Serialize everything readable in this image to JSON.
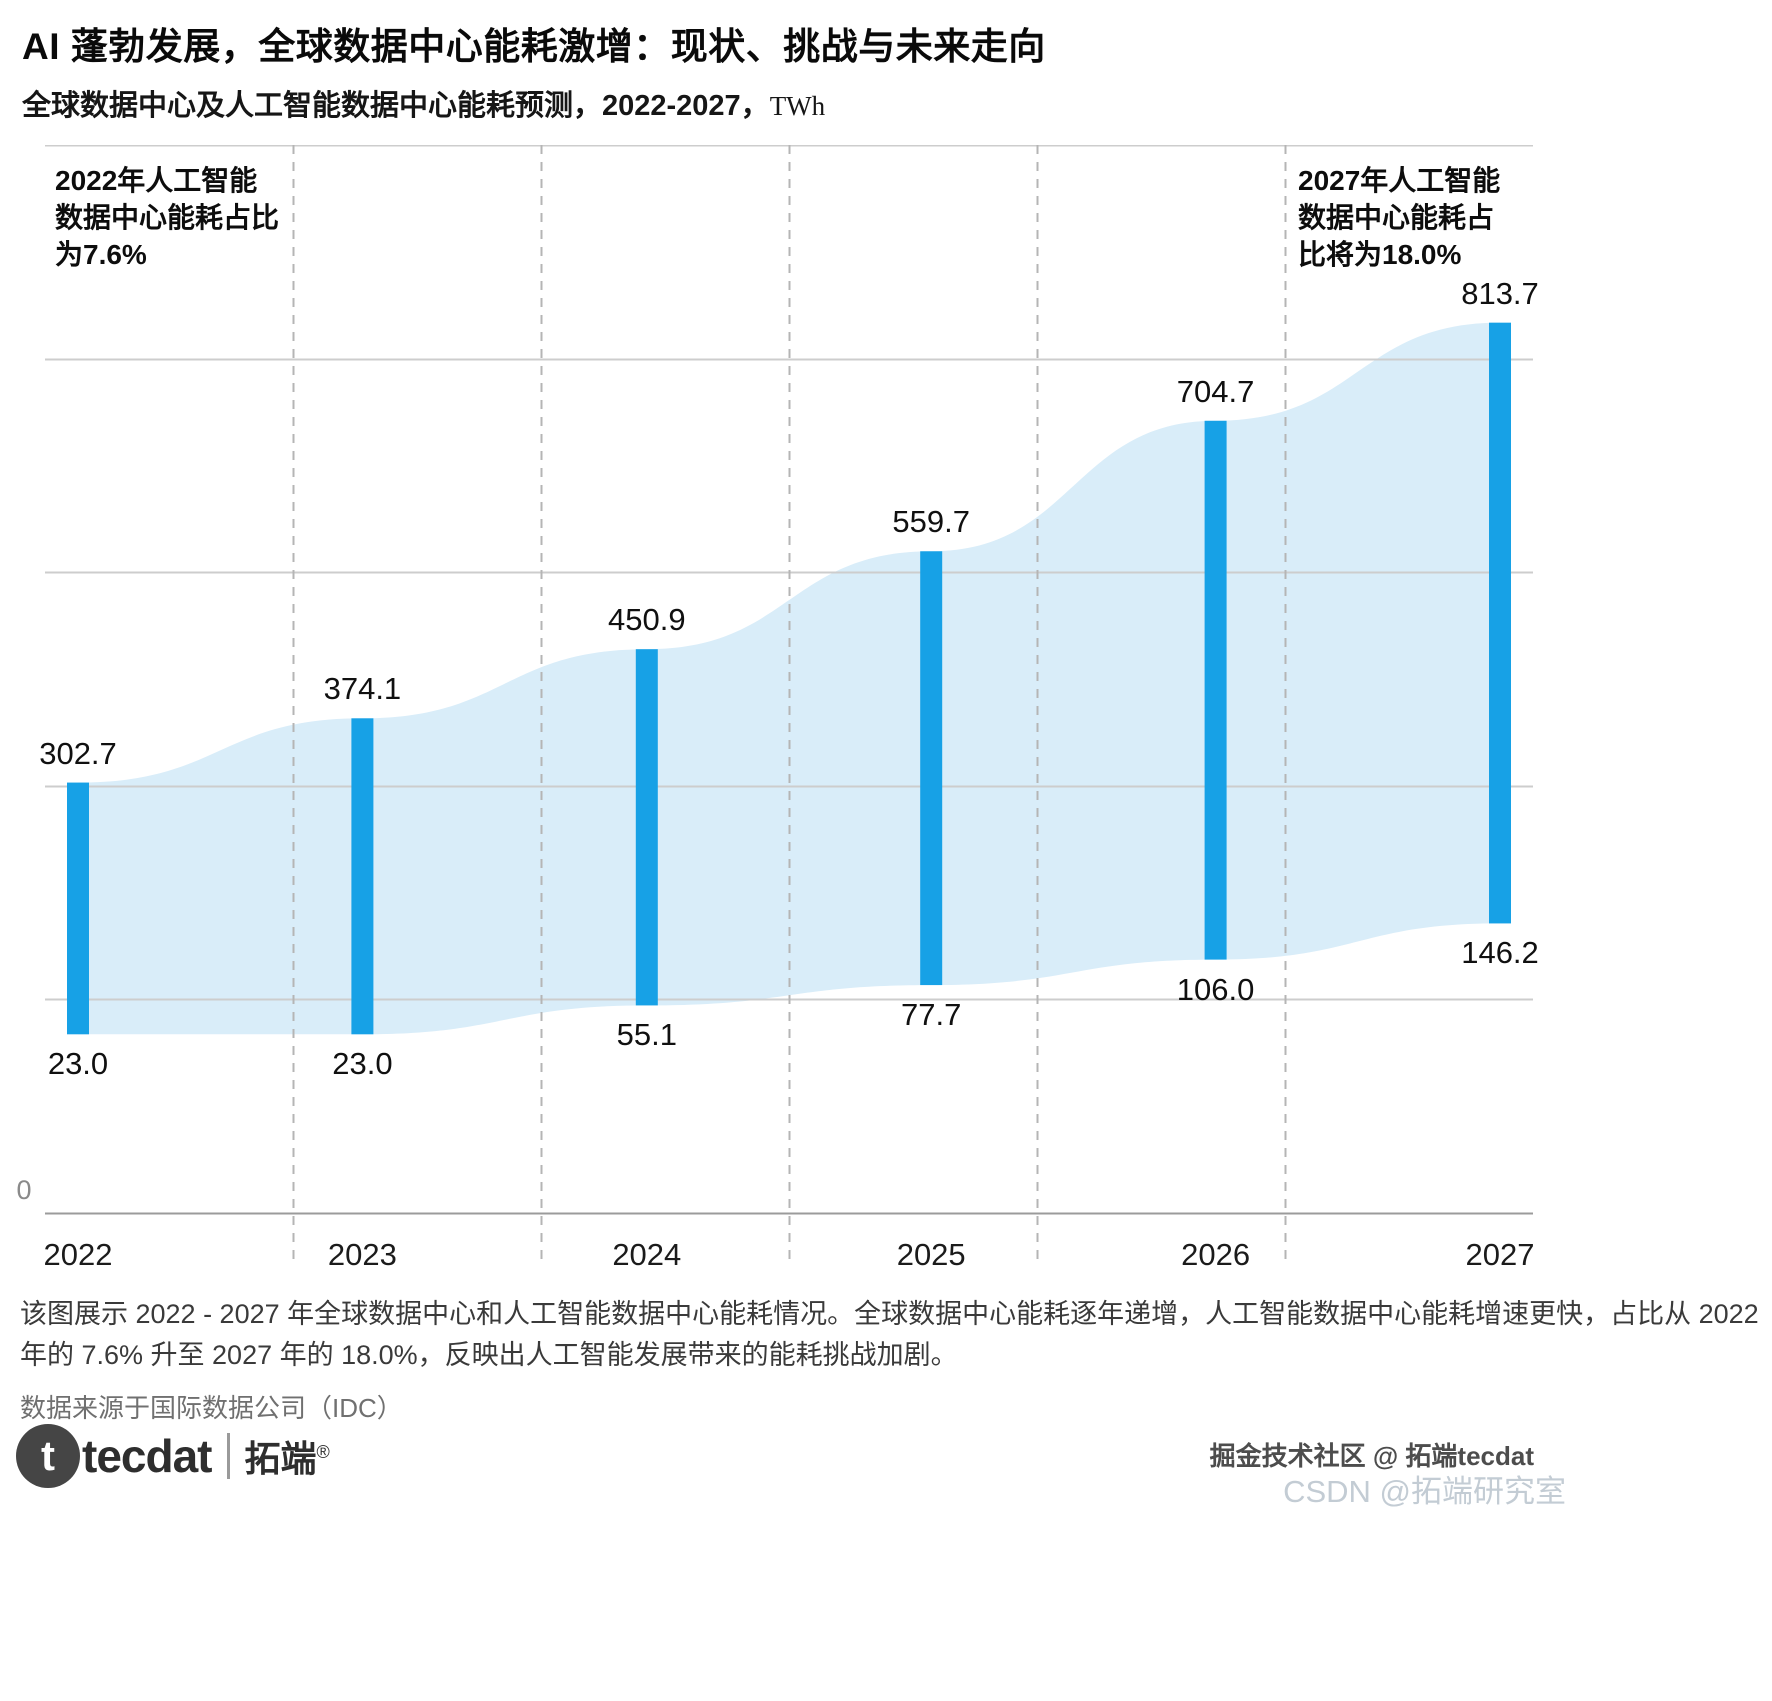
{
  "header": {
    "title": "AI 蓬勃发展，全球数据中心能耗激增：现状、挑战与未来走向",
    "subtitle_text": "全球数据中心及人工智能数据中心能耗预测，2022-2027，",
    "subtitle_unit": "TWh"
  },
  "chart_data": {
    "type": "area",
    "title": "全球数据中心及人工智能数据中心能耗预测，2022-2027，TWh",
    "categories": [
      "2022",
      "2023",
      "2024",
      "2025",
      "2026",
      "2027"
    ],
    "series": [
      {
        "name": "全球数据中心能耗",
        "values": [
          302.7,
          374.1,
          450.9,
          559.7,
          704.7,
          813.7
        ]
      },
      {
        "name": "人工智能数据中心能耗",
        "values": [
          23.0,
          23.0,
          55.1,
          77.7,
          106.0,
          146.2
        ]
      }
    ],
    "unit": "TWh",
    "ylim": [
      0,
      1000
    ],
    "y_axis_zero_label": "0",
    "legend_position": "none",
    "grid": {
      "horizontal": true,
      "vertical_dashed": true
    },
    "annotations": [
      "2022年人工智能\n数据中心能耗占比\n为7.6%",
      "2027年人工智能\n数据中心能耗占\n比将为18.0%"
    ],
    "colors": {
      "bar": "#17a1e6",
      "band": "#d9edf9",
      "gridline": "#cdcdcd",
      "dashed": "#b5b5b5",
      "axis": "#9b9b9b"
    }
  },
  "footer": {
    "caption": "该图展示 2022 - 2027 年全球数据中心和人工智能数据中心能耗情况。全球数据中心能耗逐年递增，人工智能数据中心能耗增速更快，占比从 2022 年的 7.6% 升至 2027 年的 18.0%，反映出人工智能发展带来的能耗挑战加剧。",
    "source": "数据来源于国际数据公司（IDC）",
    "logo": {
      "circle_letter": "t",
      "brand": "tecdat",
      "brand_cn": "拓端",
      "reg": "®"
    },
    "watermark_top": "掘金技术社区 @ 拓端tecdat",
    "watermark_bottom": "CSDN @拓端研究室"
  }
}
